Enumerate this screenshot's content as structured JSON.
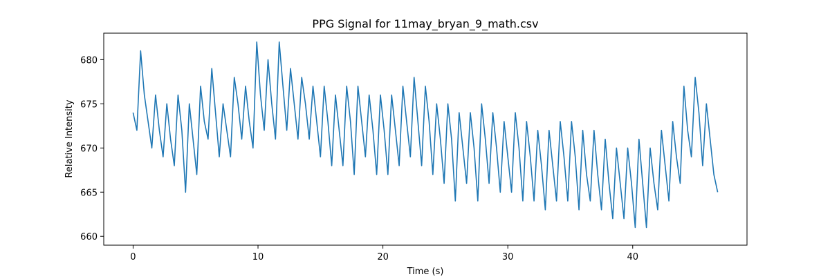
{
  "chart_data": {
    "type": "line",
    "title": "PPG Signal for 11may_bryan_9_math.csv",
    "xlabel": "Time (s)",
    "ylabel": "Relative Intensity",
    "xlim": [
      -2.35,
      49.15
    ],
    "ylim": [
      659.0,
      683.0
    ],
    "xticks": [
      0,
      10,
      20,
      30,
      40
    ],
    "yticks": [
      660,
      665,
      670,
      675,
      680
    ],
    "grid": false,
    "legend": "none",
    "line_color": "#1f77b4",
    "series": [
      {
        "x": [
          0.0,
          0.3,
          0.6,
          0.9,
          1.2,
          1.5,
          1.8,
          2.1,
          2.4,
          2.7,
          3.0,
          3.3,
          3.6,
          3.9,
          4.2,
          4.5,
          4.8,
          5.1,
          5.4,
          5.7,
          6.0,
          6.3,
          6.6,
          6.9,
          7.2,
          7.5,
          7.8,
          8.1,
          8.4,
          8.7,
          9.0,
          9.3,
          9.6,
          9.9,
          10.2,
          10.5,
          10.8,
          11.1,
          11.4,
          11.7,
          12.0,
          12.3,
          12.6,
          12.9,
          13.2,
          13.5,
          13.8,
          14.1,
          14.4,
          14.7,
          15.0,
          15.3,
          15.6,
          15.9,
          16.2,
          16.5,
          16.8,
          17.1,
          17.4,
          17.7,
          18.0,
          18.3,
          18.6,
          18.9,
          19.2,
          19.5,
          19.8,
          20.1,
          20.4,
          20.7,
          21.0,
          21.3,
          21.6,
          21.9,
          22.2,
          22.5,
          22.8,
          23.1,
          23.4,
          23.7,
          24.0,
          24.3,
          24.6,
          24.9,
          25.2,
          25.5,
          25.8,
          26.1,
          26.4,
          26.7,
          27.0,
          27.3,
          27.6,
          27.9,
          28.2,
          28.5,
          28.8,
          29.1,
          29.4,
          29.7,
          30.0,
          30.3,
          30.6,
          30.9,
          31.2,
          31.5,
          31.8,
          32.1,
          32.4,
          32.7,
          33.0,
          33.3,
          33.6,
          33.9,
          34.2,
          34.5,
          34.8,
          35.1,
          35.4,
          35.7,
          36.0,
          36.3,
          36.6,
          36.9,
          37.2,
          37.5,
          37.8,
          38.1,
          38.4,
          38.7,
          39.0,
          39.3,
          39.6,
          39.9,
          40.2,
          40.5,
          40.8,
          41.1,
          41.4,
          41.7,
          42.0,
          42.3,
          42.6,
          42.9,
          43.2,
          43.5,
          43.8,
          44.1,
          44.4,
          44.7,
          45.0,
          45.3,
          45.6,
          45.9,
          46.2,
          46.5,
          46.8
        ],
        "y": [
          674,
          672,
          681,
          676,
          673,
          670,
          676,
          672,
          669,
          675,
          671,
          668,
          676,
          672,
          665,
          675,
          671,
          667,
          677,
          673,
          671,
          679,
          674,
          669,
          675,
          672,
          669,
          678,
          675,
          671,
          677,
          673,
          670,
          682,
          676,
          672,
          680,
          675,
          671,
          682,
          677,
          672,
          679,
          675,
          671,
          678,
          675,
          671,
          677,
          673,
          669,
          677,
          673,
          668,
          676,
          672,
          668,
          677,
          673,
          667,
          677,
          673,
          669,
          676,
          672,
          667,
          676,
          672,
          667,
          676,
          672,
          668,
          677,
          673,
          669,
          678,
          673,
          668,
          677,
          673,
          667,
          675,
          671,
          666,
          675,
          671,
          664,
          674,
          670,
          666,
          674,
          670,
          664,
          675,
          671,
          666,
          674,
          670,
          665,
          673,
          669,
          665,
          674,
          670,
          664,
          673,
          669,
          664,
          672,
          668,
          663,
          672,
          668,
          664,
          673,
          669,
          664,
          673,
          669,
          663,
          672,
          667,
          664,
          672,
          667,
          663,
          671,
          666,
          662,
          670,
          666,
          662,
          670,
          666,
          661,
          671,
          666,
          661,
          670,
          666,
          663,
          672,
          668,
          664,
          673,
          669,
          666,
          677,
          672,
          669,
          678,
          674,
          668,
          675,
          671,
          667,
          665
        ]
      }
    ]
  }
}
